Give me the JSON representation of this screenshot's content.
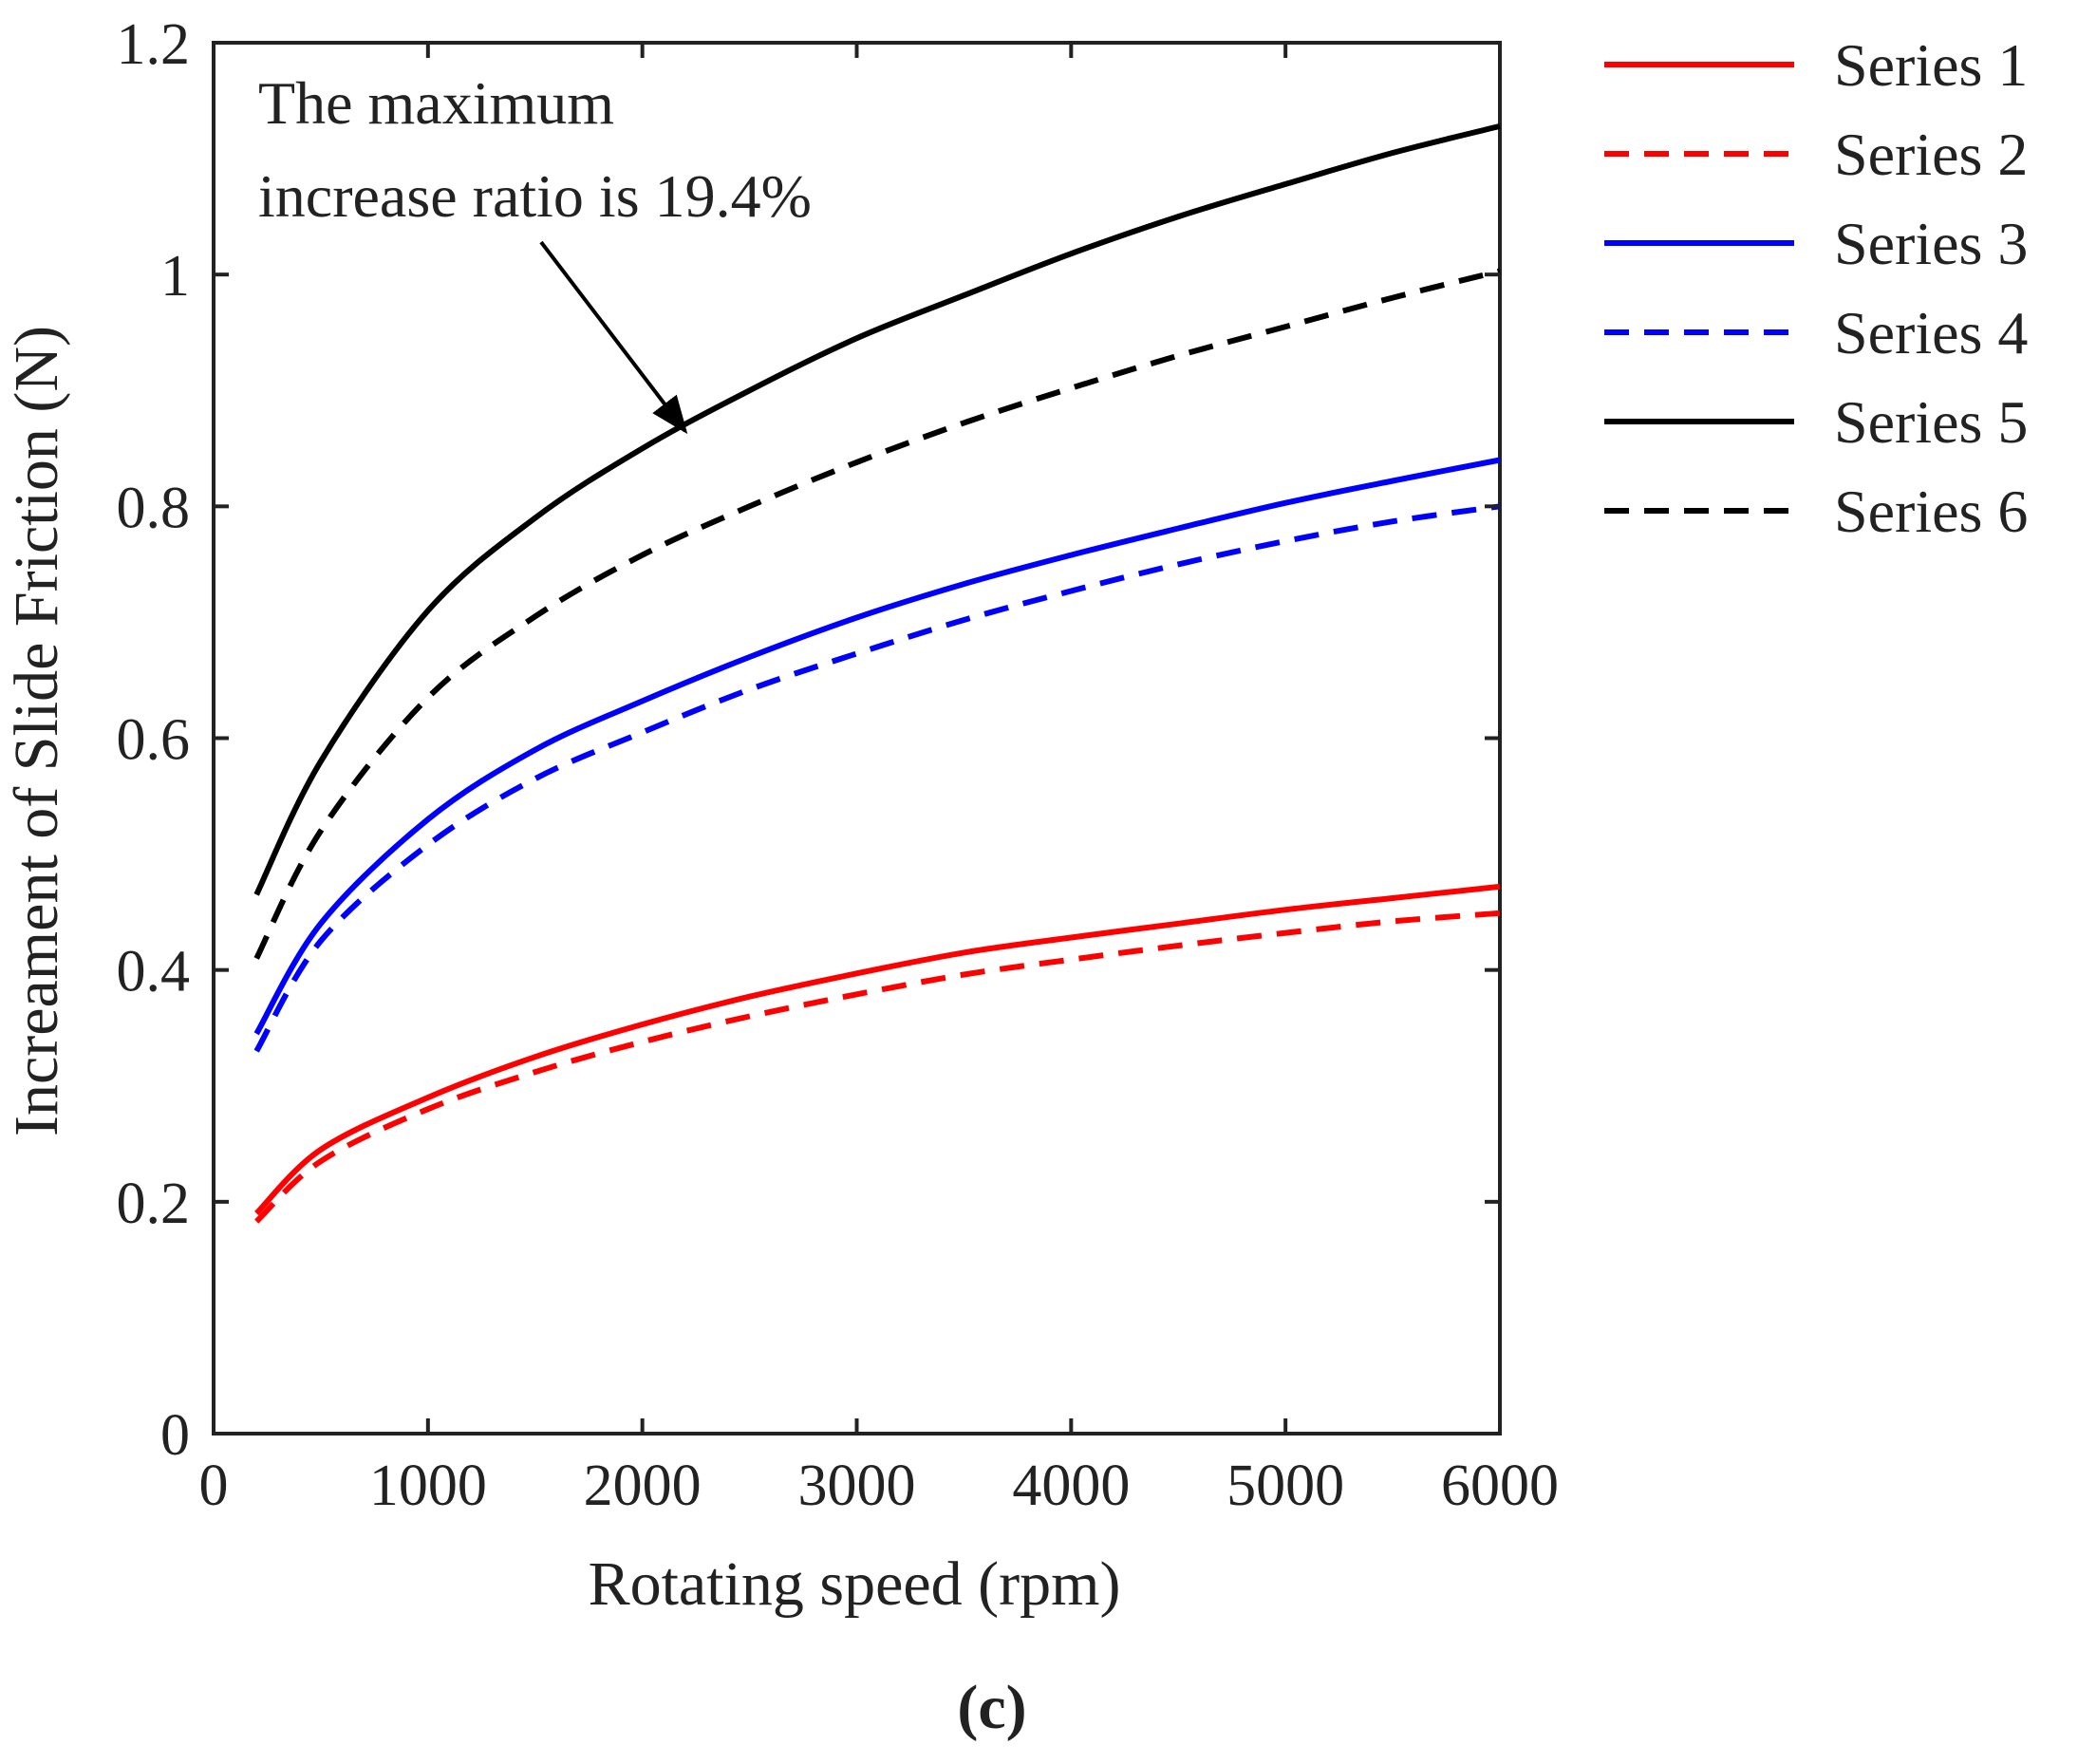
{
  "chart_data": {
    "type": "line",
    "xlabel": "Rotating speed (rpm)",
    "ylabel": "Increament of Slide Friction  (N)",
    "xlim": [
      0,
      6000
    ],
    "ylim": [
      0,
      1.2
    ],
    "xticks": [
      0,
      1000,
      2000,
      3000,
      4000,
      5000,
      6000
    ],
    "yticks": [
      0,
      0.2,
      0.4,
      0.6,
      0.8,
      1,
      1.2
    ],
    "xtick_labels": [
      "0",
      "1000",
      "2000",
      "3000",
      "4000",
      "5000",
      "6000"
    ],
    "ytick_labels": [
      "0",
      "0.2",
      "0.4",
      "0.6",
      "0.8",
      "1",
      "1.2"
    ],
    "grid": false,
    "legend_position": "outside-right",
    "annotation": {
      "lines": [
        "The maximum",
        "increase ratio is 19.4%"
      ],
      "arrow_to": [
        2200,
        0.865
      ]
    },
    "panel_label": "(c)",
    "x": [
      200,
      500,
      1000,
      1500,
      2000,
      2500,
      3000,
      3500,
      4000,
      4500,
      5000,
      5500,
      6000
    ],
    "series": [
      {
        "name": "Series 1",
        "color": "#ff0000",
        "dash": "solid",
        "values": [
          0.19,
          0.245,
          0.29,
          0.325,
          0.353,
          0.377,
          0.397,
          0.415,
          0.428,
          0.44,
          0.452,
          0.462,
          0.472
        ]
      },
      {
        "name": "Series 2",
        "color": "#ff0000",
        "dash": "dashed",
        "values": [
          0.183,
          0.235,
          0.28,
          0.312,
          0.338,
          0.36,
          0.379,
          0.396,
          0.409,
          0.421,
          0.432,
          0.442,
          0.449
        ]
      },
      {
        "name": "Series 3",
        "color": "#0000ff",
        "dash": "solid",
        "values": [
          0.345,
          0.44,
          0.53,
          0.59,
          0.632,
          0.67,
          0.704,
          0.733,
          0.758,
          0.781,
          0.803,
          0.822,
          0.84
        ]
      },
      {
        "name": "Series 4",
        "color": "#0000ff",
        "dash": "dashed",
        "values": [
          0.33,
          0.425,
          0.508,
          0.565,
          0.605,
          0.642,
          0.673,
          0.702,
          0.727,
          0.75,
          0.77,
          0.787,
          0.8
        ]
      },
      {
        "name": "Series 5",
        "color": "#000000",
        "dash": "solid",
        "values": [
          0.465,
          0.58,
          0.71,
          0.79,
          0.85,
          0.9,
          0.945,
          0.982,
          1.018,
          1.05,
          1.078,
          1.105,
          1.128
        ]
      },
      {
        "name": "Series 6",
        "color": "#000000",
        "dash": "dashed",
        "values": [
          0.41,
          0.52,
          0.635,
          0.705,
          0.758,
          0.8,
          0.838,
          0.872,
          0.902,
          0.93,
          0.955,
          0.98,
          1.003
        ]
      }
    ]
  }
}
